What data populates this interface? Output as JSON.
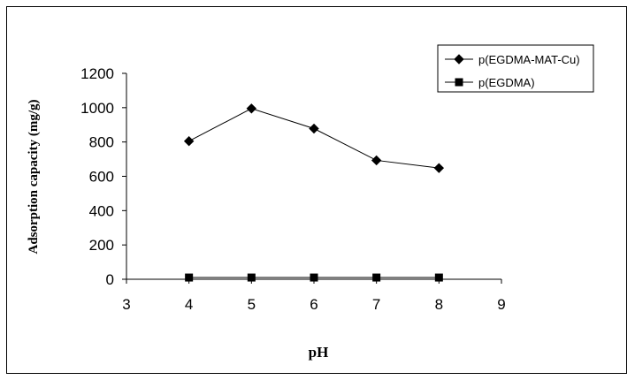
{
  "chart_data": {
    "type": "line",
    "title": "",
    "xlabel": "pH",
    "ylabel": "Adsorption capacity (mg/g)",
    "xlim": [
      3,
      9
    ],
    "ylim": [
      0,
      1200
    ],
    "xticks": [
      "3",
      "4",
      "5",
      "6",
      "7",
      "8",
      "9"
    ],
    "yticks": [
      "0",
      "200",
      "400",
      "600",
      "800",
      "1000",
      "1200"
    ],
    "grid": false,
    "legend": "top-right",
    "series": [
      {
        "name": "p(EGDMA-MAT-Cu)",
        "marker": "diamond",
        "color": "#000000",
        "x": [
          4,
          5,
          6,
          7,
          8
        ],
        "y": [
          805,
          995,
          878,
          693,
          648
        ]
      },
      {
        "name": "p(EGDMA)",
        "marker": "square",
        "color": "#000000",
        "x": [
          4,
          5,
          6,
          7,
          8
        ],
        "y": [
          10,
          10,
          10,
          10,
          10
        ]
      }
    ]
  }
}
